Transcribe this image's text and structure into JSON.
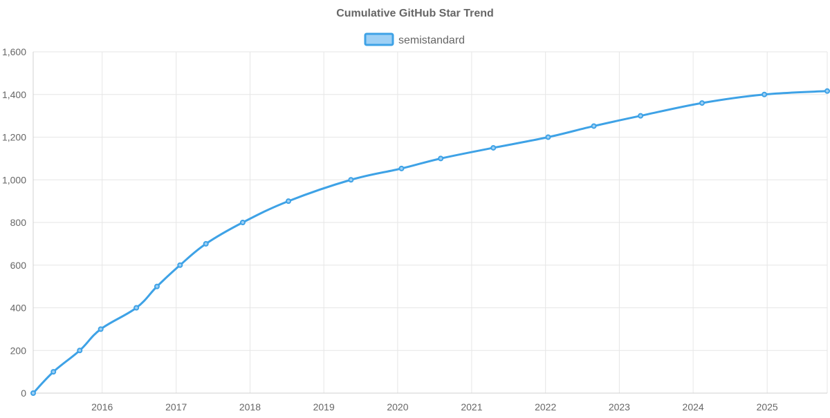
{
  "chart_data": {
    "type": "line",
    "title": "Cumulative GitHub Star Trend",
    "xlabel": "",
    "ylabel": "",
    "legend_position": "top",
    "grid": true,
    "x_axis_type": "time",
    "xlim": [
      "2015-01-25",
      "2025-10-25"
    ],
    "ylim": [
      0,
      1600
    ],
    "x_ticks": [
      "2016",
      "2017",
      "2018",
      "2019",
      "2020",
      "2021",
      "2022",
      "2023",
      "2024",
      "2025"
    ],
    "y_ticks": [
      "0",
      "200",
      "400",
      "600",
      "800",
      "1,000",
      "1,200",
      "1,400",
      "1,600"
    ],
    "colors": {
      "line": "#3ea2e6",
      "fill": "#9ed0f5",
      "grid": "#e6e6e6",
      "text": "#666666"
    },
    "series": [
      {
        "name": "semistandard",
        "x": [
          "2015-01-25",
          "2015-05-05",
          "2015-09-12",
          "2015-12-25",
          "2016-06-18",
          "2016-09-28",
          "2017-01-20",
          "2017-05-28",
          "2017-11-26",
          "2018-07-10",
          "2019-05-15",
          "2020-01-20",
          "2020-08-01",
          "2021-04-18",
          "2022-01-14",
          "2022-08-28",
          "2023-04-16",
          "2024-02-14",
          "2024-12-18",
          "2025-10-25"
        ],
        "values": [
          0,
          100,
          200,
          300,
          400,
          500,
          600,
          700,
          800,
          900,
          1000,
          1053,
          1100,
          1150,
          1200,
          1252,
          1300,
          1360,
          1400,
          1416
        ]
      }
    ]
  }
}
